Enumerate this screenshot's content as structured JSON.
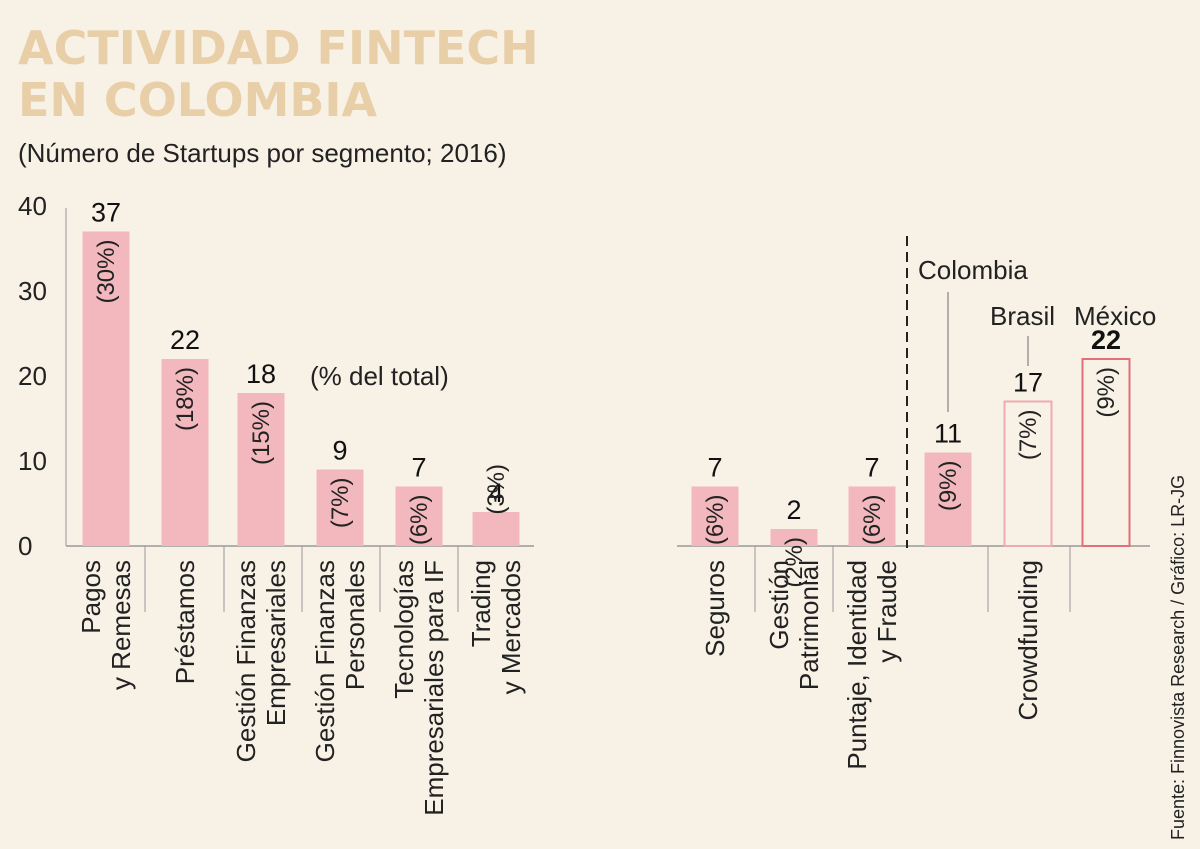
{
  "title_line1": "ACTIVIDAD FINTECH",
  "title_line2": "EN COLOMBIA",
  "subtitle": "(Número de Startups por segmento; 2016)",
  "source": "Fuente: Finnovista Research / Gráfico: LR-JG",
  "colors": {
    "bar_fill": "#f2b8bd",
    "bar_outline_brasil": "#eeaab0",
    "bar_outline_mexico": "#e0707c",
    "title": "#e8cfa8"
  },
  "chart_data": {
    "type": "bar",
    "ylim": [
      0,
      40
    ],
    "yticks": [
      0,
      10,
      20,
      30,
      40
    ],
    "annotation": "(% del total)",
    "categories": [
      "Pagos y Remesas",
      "Préstamos",
      "Gestión Finanzas Empresariales",
      "Gestión Finanzas Personales",
      "Tecnologías Empresariales para IF",
      "Trading y Mercados",
      "Seguros",
      "Gestión Patrimonial",
      "Puntaje, Identidad y Fraude",
      "Crowdfunding"
    ],
    "category_label_lines": [
      [
        "Pagos",
        "y Remesas"
      ],
      [
        "Préstamos"
      ],
      [
        "Gestión Finanzas",
        "Empresariales"
      ],
      [
        "Gestión Finanzas",
        "Personales"
      ],
      [
        "Tecnologías",
        "Empresariales para IF"
      ],
      [
        "Trading",
        "y Mercados"
      ],
      [
        "Seguros"
      ],
      [
        "Gestión",
        "Patrimonial"
      ],
      [
        "Puntaje, Identidad",
        "y Fraude"
      ],
      [
        "Crowdfunding"
      ]
    ],
    "values": [
      37,
      22,
      18,
      9,
      7,
      4,
      7,
      2,
      7,
      11
    ],
    "percent_labels": [
      "(30%)",
      "(18%)",
      "(15%)",
      "(7%)",
      "(6%)",
      "(3%)",
      "(6%)",
      "(2%)",
      "(6%)",
      "(9%)"
    ],
    "crowdfunding_comparison": [
      {
        "country": "Colombia",
        "value": 11,
        "percent": "(9%)"
      },
      {
        "country": "Brasil",
        "value": 17,
        "percent": "(7%)"
      },
      {
        "country": "México",
        "value": 22,
        "percent": "(9%)"
      }
    ]
  }
}
